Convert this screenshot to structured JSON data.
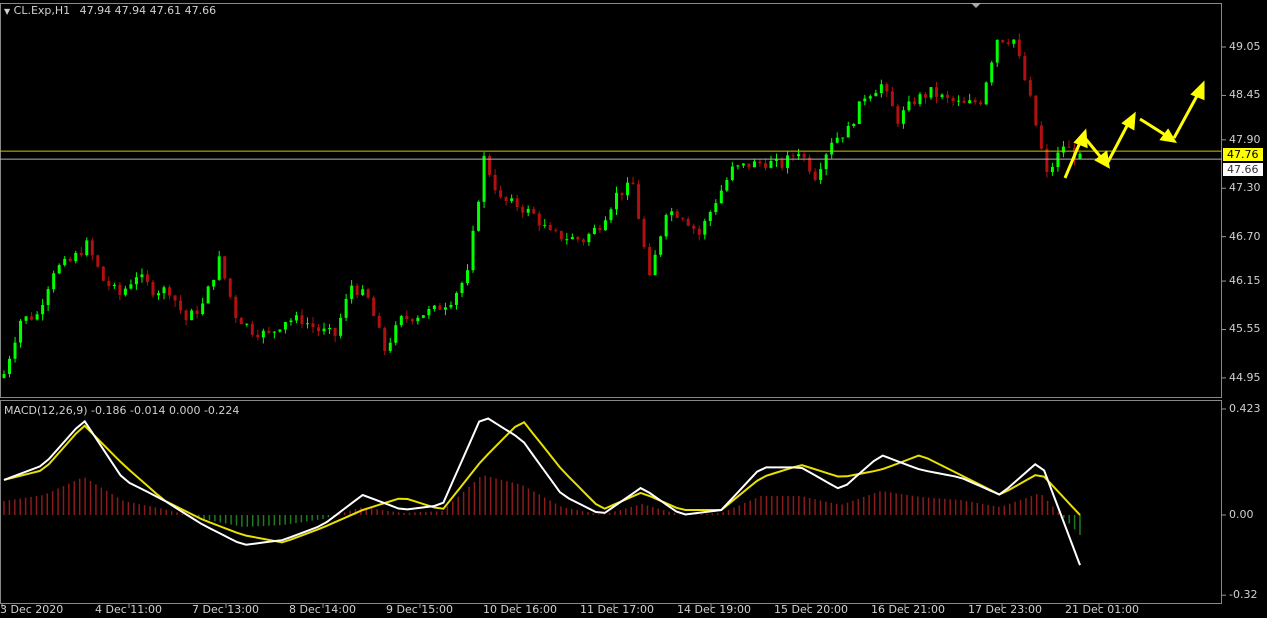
{
  "header": {
    "symbol": "CL.Exp,H1",
    "ohlc": "47.94 47.94 47.61 47.66"
  },
  "macd_header": {
    "title": "MACD(12,26,9)",
    "values": "-0.186 -0.014 0.000 -0.224"
  },
  "colors": {
    "bull": "#00ff00",
    "bear": "#b01010",
    "macd_main": "#ffffff",
    "macd_signal": "#e8e000",
    "hist_pos": "#8b1a1a",
    "hist_neg": "#1f7a1f",
    "ask_line": "#c8c800",
    "bid_line": "#b0b0b0",
    "arrows": "#ffff00",
    "background": "#000000"
  },
  "chart_data": [
    {
      "type": "candlestick",
      "timeframe": "H1",
      "y_ticks": [
        "49.05",
        "48.45",
        "47.90",
        "47.30",
        "46.70",
        "46.15",
        "45.55",
        "44.95"
      ],
      "ylim": [
        44.9,
        49.35
      ],
      "x_tick_labels": [
        "3 Dec 2020",
        "4 Dec 11:00",
        "7 Dec 13:00",
        "8 Dec 14:00",
        "9 Dec 15:00",
        "10 Dec 16:00",
        "11 Dec 17:00",
        "14 Dec 19:00",
        "15 Dec 20:00",
        "16 Dec 21:00",
        "17 Dec 23:00",
        "21 Dec 01:00"
      ],
      "approx_closes": [
        45.0,
        45.67,
        45.73,
        46.29,
        46.39,
        46.6,
        46.16,
        45.98,
        46.23,
        46.04,
        46.04,
        45.67,
        45.85,
        46.41,
        45.73,
        45.54,
        45.48,
        45.67,
        45.67,
        45.54,
        45.48,
        46.1,
        45.92,
        45.3,
        45.67,
        45.73,
        45.79,
        45.92,
        46.23,
        47.67,
        47.15,
        47.09,
        46.97,
        46.73,
        46.69,
        46.66,
        46.85,
        47.22,
        47.34,
        46.16,
        47.03,
        46.97,
        46.73,
        47.15,
        47.53,
        47.59,
        47.62,
        47.59,
        47.77,
        47.46,
        47.9,
        48.02,
        48.45,
        48.58,
        48.15,
        48.39,
        48.49,
        48.39,
        48.33,
        48.39,
        49.16,
        49.14,
        48.39,
        47.46,
        47.83,
        47.66
      ],
      "ask_price": {
        "value": 47.76,
        "label": "47.76"
      },
      "bid_price": {
        "value": 47.66,
        "label": "47.66"
      }
    },
    {
      "type": "line",
      "name": "MACD(12,26,9)",
      "y_ticks": [
        "0.423",
        "0.00",
        "-0.32"
      ],
      "ylim": [
        -0.34,
        0.44
      ],
      "series": [
        {
          "role": "main",
          "values": [
            0.14,
            0.2,
            0.38,
            0.14,
            0.06,
            -0.04,
            -0.12,
            -0.1,
            -0.04,
            0.08,
            0.02,
            0.04,
            0.4,
            0.3,
            0.08,
            0.0,
            0.11,
            0.0,
            0.02,
            0.19,
            0.19,
            0.1,
            0.24,
            0.18,
            0.15,
            0.08,
            0.22,
            -0.2
          ]
        },
        {
          "role": "signal",
          "values": [
            0.14,
            0.18,
            0.36,
            0.2,
            0.06,
            -0.02,
            -0.08,
            -0.11,
            -0.05,
            0.02,
            0.07,
            0.02,
            0.22,
            0.38,
            0.18,
            0.02,
            0.09,
            0.02,
            0.02,
            0.15,
            0.2,
            0.15,
            0.18,
            0.24,
            0.16,
            0.08,
            0.17,
            0.0
          ]
        }
      ]
    }
  ]
}
